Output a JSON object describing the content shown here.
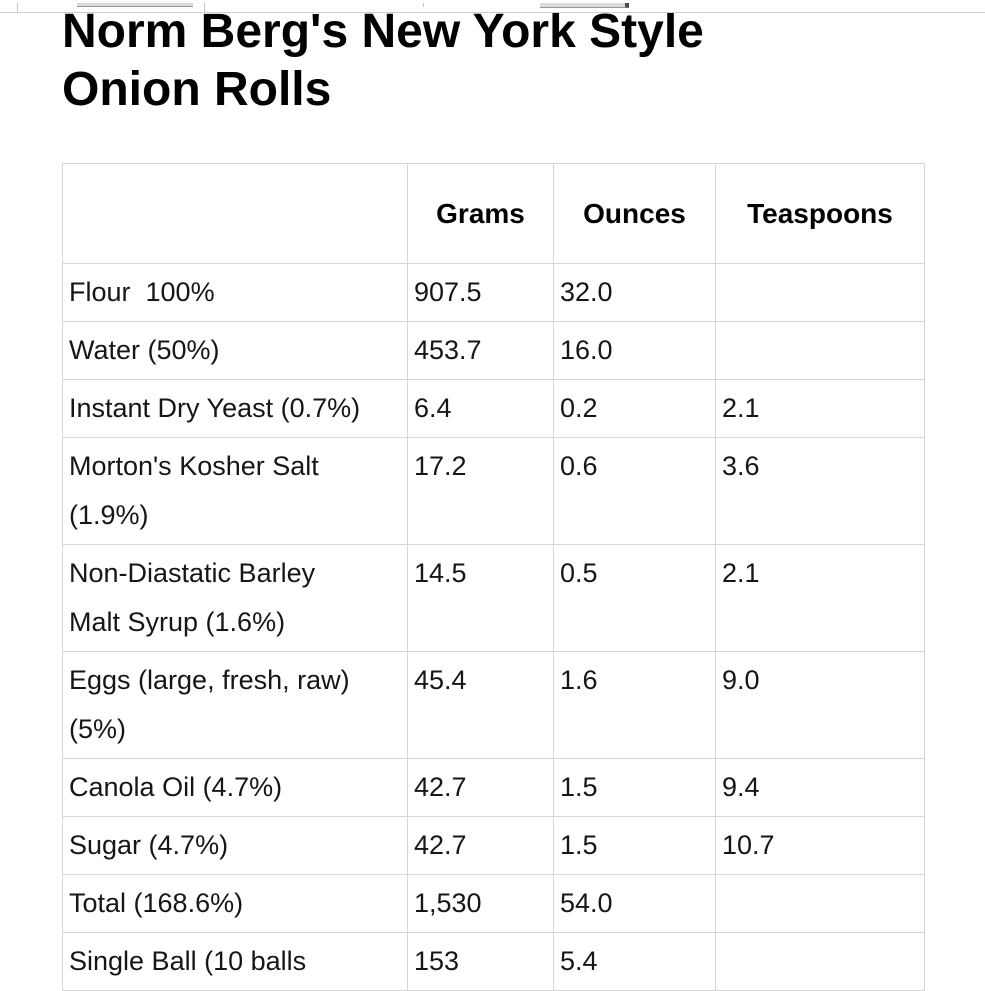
{
  "page": {
    "title": "Norm Berg's New York Style Onion Rolls"
  },
  "table": {
    "headers": [
      "",
      "Grams",
      "Ounces",
      "Teaspoons"
    ],
    "rows": [
      {
        "ingredient": "Flour  100%",
        "grams": "907.5",
        "ounces": "32.0",
        "teaspoons": ""
      },
      {
        "ingredient": "Water (50%)",
        "grams": "453.7",
        "ounces": "16.0",
        "teaspoons": ""
      },
      {
        "ingredient": "Instant Dry Yeast (0.7%)",
        "grams": "6.4",
        "ounces": "0.2",
        "teaspoons": "2.1"
      },
      {
        "ingredient": "Morton's Kosher Salt (1.9%)",
        "grams": "17.2",
        "ounces": "0.6",
        "teaspoons": "3.6"
      },
      {
        "ingredient": "Non-Diastatic Barley Malt Syrup (1.6%)",
        "grams": "14.5",
        "ounces": "0.5",
        "teaspoons": "2.1"
      },
      {
        "ingredient": "Eggs (large, fresh, raw) (5%)",
        "grams": "45.4",
        "ounces": "1.6",
        "teaspoons": "9.0"
      },
      {
        "ingredient": "Canola Oil (4.7%)",
        "grams": "42.7",
        "ounces": "1.5",
        "teaspoons": "9.4"
      },
      {
        "ingredient": "Sugar (4.7%)",
        "grams": "42.7",
        "ounces": "1.5",
        "teaspoons": "10.7"
      },
      {
        "ingredient": "Total (168.6%)",
        "grams": "1,530",
        "ounces": "54.0",
        "teaspoons": ""
      },
      {
        "ingredient": "Single Ball (10 balls",
        "grams": "153",
        "ounces": "5.4",
        "teaspoons": ""
      }
    ]
  },
  "colors": {
    "title_text": "#000000",
    "body_text": "#161616",
    "grid_border": "#d6d6d6",
    "background": "#ffffff"
  }
}
